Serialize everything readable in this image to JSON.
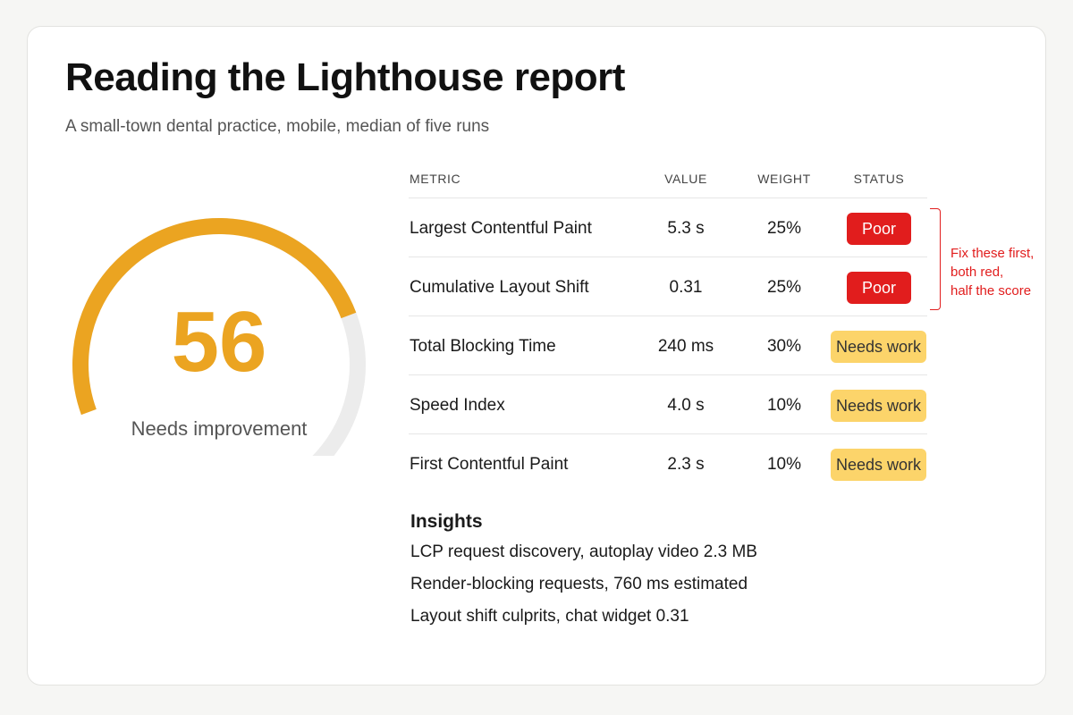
{
  "header": {
    "title": "Reading the Lighthouse report",
    "subtitle": "A small-town dental practice, mobile, median of five runs"
  },
  "gauge": {
    "score": "56",
    "score_value": 56,
    "score_max": 100,
    "label": "Needs improvement",
    "accent_color": "#eba421",
    "track_color": "#ececec"
  },
  "table": {
    "headers": {
      "metric": "METRIC",
      "value": "VALUE",
      "weight": "WEIGHT",
      "status": "STATUS"
    },
    "rows": [
      {
        "metric": "Largest Contentful Paint",
        "value": "5.3 s",
        "weight": "25%",
        "status": "Poor",
        "status_kind": "poor"
      },
      {
        "metric": "Cumulative Layout Shift",
        "value": "0.31",
        "weight": "25%",
        "status": "Poor",
        "status_kind": "poor"
      },
      {
        "metric": "Total Blocking Time",
        "value": "240 ms",
        "weight": "30%",
        "status": "Needs work",
        "status_kind": "work"
      },
      {
        "metric": "Speed Index",
        "value": "4.0 s",
        "weight": "10%",
        "status": "Needs work",
        "status_kind": "work"
      },
      {
        "metric": "First Contentful Paint",
        "value": "2.3 s",
        "weight": "10%",
        "status": "Needs work",
        "status_kind": "work"
      }
    ]
  },
  "annotation": {
    "lines": [
      "Fix these first,",
      "both red,",
      "half the score"
    ],
    "color": "#e11d1d"
  },
  "insights": {
    "heading": "Insights",
    "items": [
      "LCP request discovery, autoplay video 2.3 MB",
      "Render-blocking requests, 760 ms estimated",
      "Layout shift culprits, chat widget 0.31"
    ]
  },
  "colors": {
    "poor": "#e11d1d",
    "needs_work": "#fcd46a"
  }
}
